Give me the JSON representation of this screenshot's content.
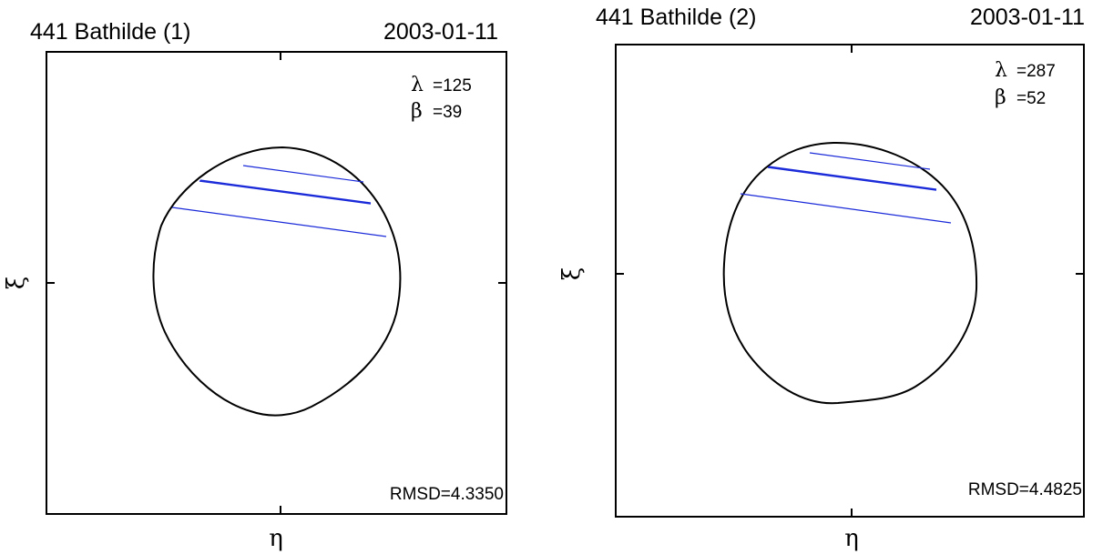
{
  "panels": [
    {
      "id": "panel-1",
      "title": "441 Bathilde  (1)",
      "date": "2003-01-11",
      "lambda_label": "λ",
      "lambda_value": "=125",
      "beta_label": "β",
      "beta_value": "=39",
      "rmsd": "RMSD=4.3350",
      "xlabel": "η",
      "ylabel": "ξ"
    },
    {
      "id": "panel-2",
      "title": "441 Bathilde  (2)",
      "date": "2003-01-11",
      "lambda_label": "λ",
      "lambda_value": "=287",
      "beta_label": "β",
      "beta_value": "=52",
      "rmsd": "RMSD=4.4825",
      "xlabel": "η",
      "ylabel": "ξ"
    }
  ],
  "colors": {
    "chord": "#1a2ad9",
    "outline": "#000000",
    "frame": "#000000"
  }
}
